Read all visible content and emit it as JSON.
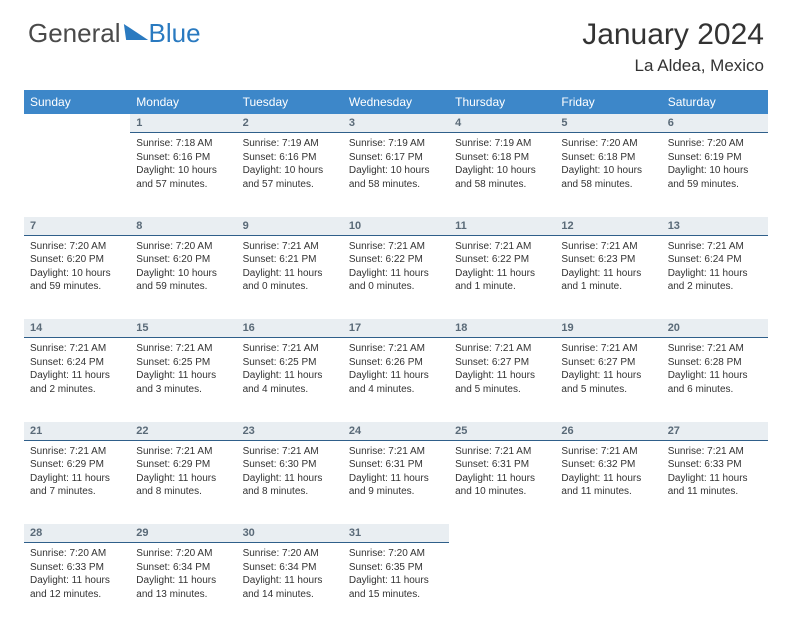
{
  "logo": {
    "word1": "General",
    "word2": "Blue"
  },
  "title": "January 2024",
  "location": "La Aldea, Mexico",
  "headers": [
    "Sunday",
    "Monday",
    "Tuesday",
    "Wednesday",
    "Thursday",
    "Friday",
    "Saturday"
  ],
  "colors": {
    "header_bg": "#3d87c9",
    "daynum_bg": "#e9eef2",
    "daynum_border": "#2f5f8a",
    "logo_blue": "#2a7ac0"
  },
  "weeks": [
    {
      "nums": [
        "",
        "1",
        "2",
        "3",
        "4",
        "5",
        "6"
      ],
      "cells": [
        null,
        {
          "sr": "Sunrise: 7:18 AM",
          "ss": "Sunset: 6:16 PM",
          "dl1": "Daylight: 10 hours",
          "dl2": "and 57 minutes."
        },
        {
          "sr": "Sunrise: 7:19 AM",
          "ss": "Sunset: 6:16 PM",
          "dl1": "Daylight: 10 hours",
          "dl2": "and 57 minutes."
        },
        {
          "sr": "Sunrise: 7:19 AM",
          "ss": "Sunset: 6:17 PM",
          "dl1": "Daylight: 10 hours",
          "dl2": "and 58 minutes."
        },
        {
          "sr": "Sunrise: 7:19 AM",
          "ss": "Sunset: 6:18 PM",
          "dl1": "Daylight: 10 hours",
          "dl2": "and 58 minutes."
        },
        {
          "sr": "Sunrise: 7:20 AM",
          "ss": "Sunset: 6:18 PM",
          "dl1": "Daylight: 10 hours",
          "dl2": "and 58 minutes."
        },
        {
          "sr": "Sunrise: 7:20 AM",
          "ss": "Sunset: 6:19 PM",
          "dl1": "Daylight: 10 hours",
          "dl2": "and 59 minutes."
        }
      ]
    },
    {
      "nums": [
        "7",
        "8",
        "9",
        "10",
        "11",
        "12",
        "13"
      ],
      "cells": [
        {
          "sr": "Sunrise: 7:20 AM",
          "ss": "Sunset: 6:20 PM",
          "dl1": "Daylight: 10 hours",
          "dl2": "and 59 minutes."
        },
        {
          "sr": "Sunrise: 7:20 AM",
          "ss": "Sunset: 6:20 PM",
          "dl1": "Daylight: 10 hours",
          "dl2": "and 59 minutes."
        },
        {
          "sr": "Sunrise: 7:21 AM",
          "ss": "Sunset: 6:21 PM",
          "dl1": "Daylight: 11 hours",
          "dl2": "and 0 minutes."
        },
        {
          "sr": "Sunrise: 7:21 AM",
          "ss": "Sunset: 6:22 PM",
          "dl1": "Daylight: 11 hours",
          "dl2": "and 0 minutes."
        },
        {
          "sr": "Sunrise: 7:21 AM",
          "ss": "Sunset: 6:22 PM",
          "dl1": "Daylight: 11 hours",
          "dl2": "and 1 minute."
        },
        {
          "sr": "Sunrise: 7:21 AM",
          "ss": "Sunset: 6:23 PM",
          "dl1": "Daylight: 11 hours",
          "dl2": "and 1 minute."
        },
        {
          "sr": "Sunrise: 7:21 AM",
          "ss": "Sunset: 6:24 PM",
          "dl1": "Daylight: 11 hours",
          "dl2": "and 2 minutes."
        }
      ]
    },
    {
      "nums": [
        "14",
        "15",
        "16",
        "17",
        "18",
        "19",
        "20"
      ],
      "cells": [
        {
          "sr": "Sunrise: 7:21 AM",
          "ss": "Sunset: 6:24 PM",
          "dl1": "Daylight: 11 hours",
          "dl2": "and 2 minutes."
        },
        {
          "sr": "Sunrise: 7:21 AM",
          "ss": "Sunset: 6:25 PM",
          "dl1": "Daylight: 11 hours",
          "dl2": "and 3 minutes."
        },
        {
          "sr": "Sunrise: 7:21 AM",
          "ss": "Sunset: 6:25 PM",
          "dl1": "Daylight: 11 hours",
          "dl2": "and 4 minutes."
        },
        {
          "sr": "Sunrise: 7:21 AM",
          "ss": "Sunset: 6:26 PM",
          "dl1": "Daylight: 11 hours",
          "dl2": "and 4 minutes."
        },
        {
          "sr": "Sunrise: 7:21 AM",
          "ss": "Sunset: 6:27 PM",
          "dl1": "Daylight: 11 hours",
          "dl2": "and 5 minutes."
        },
        {
          "sr": "Sunrise: 7:21 AM",
          "ss": "Sunset: 6:27 PM",
          "dl1": "Daylight: 11 hours",
          "dl2": "and 5 minutes."
        },
        {
          "sr": "Sunrise: 7:21 AM",
          "ss": "Sunset: 6:28 PM",
          "dl1": "Daylight: 11 hours",
          "dl2": "and 6 minutes."
        }
      ]
    },
    {
      "nums": [
        "21",
        "22",
        "23",
        "24",
        "25",
        "26",
        "27"
      ],
      "cells": [
        {
          "sr": "Sunrise: 7:21 AM",
          "ss": "Sunset: 6:29 PM",
          "dl1": "Daylight: 11 hours",
          "dl2": "and 7 minutes."
        },
        {
          "sr": "Sunrise: 7:21 AM",
          "ss": "Sunset: 6:29 PM",
          "dl1": "Daylight: 11 hours",
          "dl2": "and 8 minutes."
        },
        {
          "sr": "Sunrise: 7:21 AM",
          "ss": "Sunset: 6:30 PM",
          "dl1": "Daylight: 11 hours",
          "dl2": "and 8 minutes."
        },
        {
          "sr": "Sunrise: 7:21 AM",
          "ss": "Sunset: 6:31 PM",
          "dl1": "Daylight: 11 hours",
          "dl2": "and 9 minutes."
        },
        {
          "sr": "Sunrise: 7:21 AM",
          "ss": "Sunset: 6:31 PM",
          "dl1": "Daylight: 11 hours",
          "dl2": "and 10 minutes."
        },
        {
          "sr": "Sunrise: 7:21 AM",
          "ss": "Sunset: 6:32 PM",
          "dl1": "Daylight: 11 hours",
          "dl2": "and 11 minutes."
        },
        {
          "sr": "Sunrise: 7:21 AM",
          "ss": "Sunset: 6:33 PM",
          "dl1": "Daylight: 11 hours",
          "dl2": "and 11 minutes."
        }
      ]
    },
    {
      "nums": [
        "28",
        "29",
        "30",
        "31",
        "",
        "",
        ""
      ],
      "cells": [
        {
          "sr": "Sunrise: 7:20 AM",
          "ss": "Sunset: 6:33 PM",
          "dl1": "Daylight: 11 hours",
          "dl2": "and 12 minutes."
        },
        {
          "sr": "Sunrise: 7:20 AM",
          "ss": "Sunset: 6:34 PM",
          "dl1": "Daylight: 11 hours",
          "dl2": "and 13 minutes."
        },
        {
          "sr": "Sunrise: 7:20 AM",
          "ss": "Sunset: 6:34 PM",
          "dl1": "Daylight: 11 hours",
          "dl2": "and 14 minutes."
        },
        {
          "sr": "Sunrise: 7:20 AM",
          "ss": "Sunset: 6:35 PM",
          "dl1": "Daylight: 11 hours",
          "dl2": "and 15 minutes."
        },
        null,
        null,
        null
      ]
    }
  ]
}
